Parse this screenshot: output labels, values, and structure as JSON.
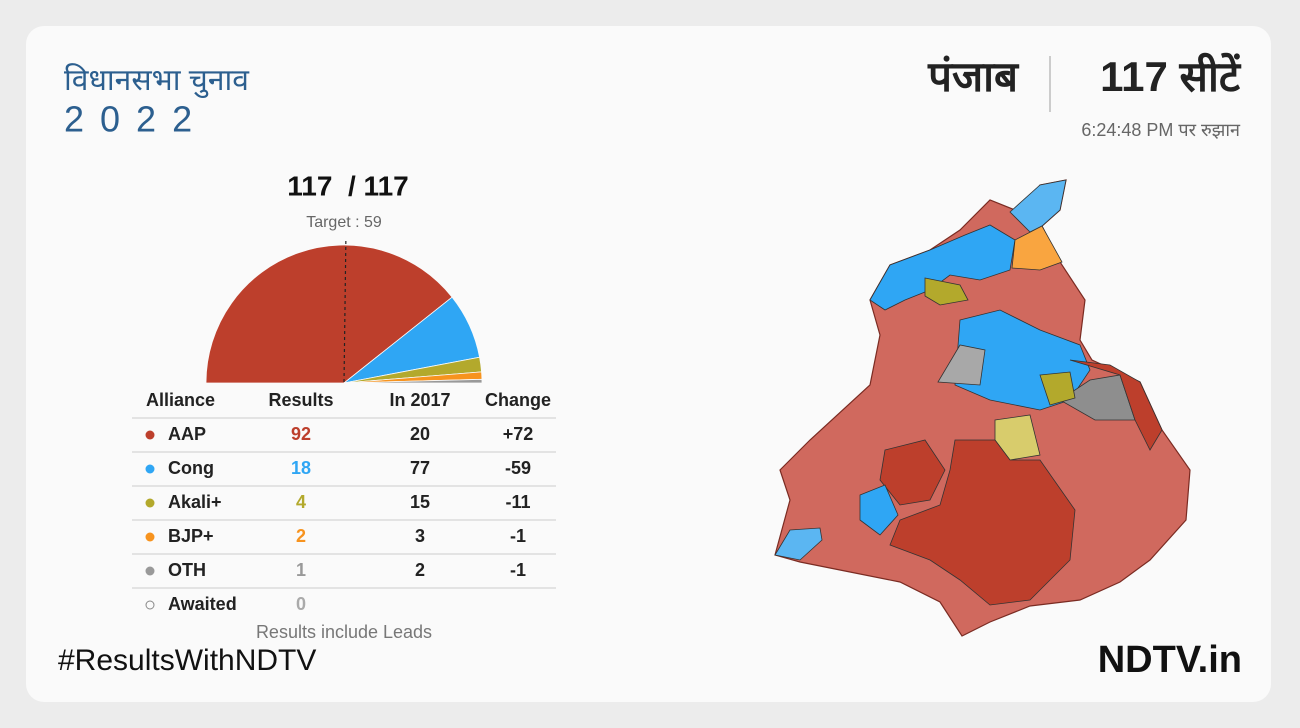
{
  "header": {
    "title": "विधानसभा चुनाव",
    "year": "2022",
    "state": "पंजाब",
    "seats": "117 सीटें",
    "updated": "6:24:48 PM पर रुझान"
  },
  "chart_data": {
    "type": "pie",
    "summary": "117  / 117",
    "target_label": "Target : 59",
    "target": 59,
    "categories": [
      "AAP",
      "Cong",
      "Akali+",
      "BJP+",
      "OTH",
      "Awaited"
    ],
    "values": [
      92,
      18,
      4,
      2,
      1,
      0
    ],
    "colors": [
      "#bd3f2c",
      "#2fa6f4",
      "#b3a92c",
      "#f7931e",
      "#999999",
      "#aaaaaa"
    ]
  },
  "table": {
    "columns": [
      "Alliance",
      "Results",
      "In 2017",
      "Change"
    ],
    "in_2017": [
      20,
      77,
      15,
      3,
      2,
      null
    ],
    "change": [
      "+72",
      "-59",
      "-11",
      "-1",
      "-1",
      null
    ],
    "note": "Results include Leads"
  },
  "footer": {
    "hashtag": "#ResultsWithNDTV",
    "brand": "NDTV.in"
  }
}
